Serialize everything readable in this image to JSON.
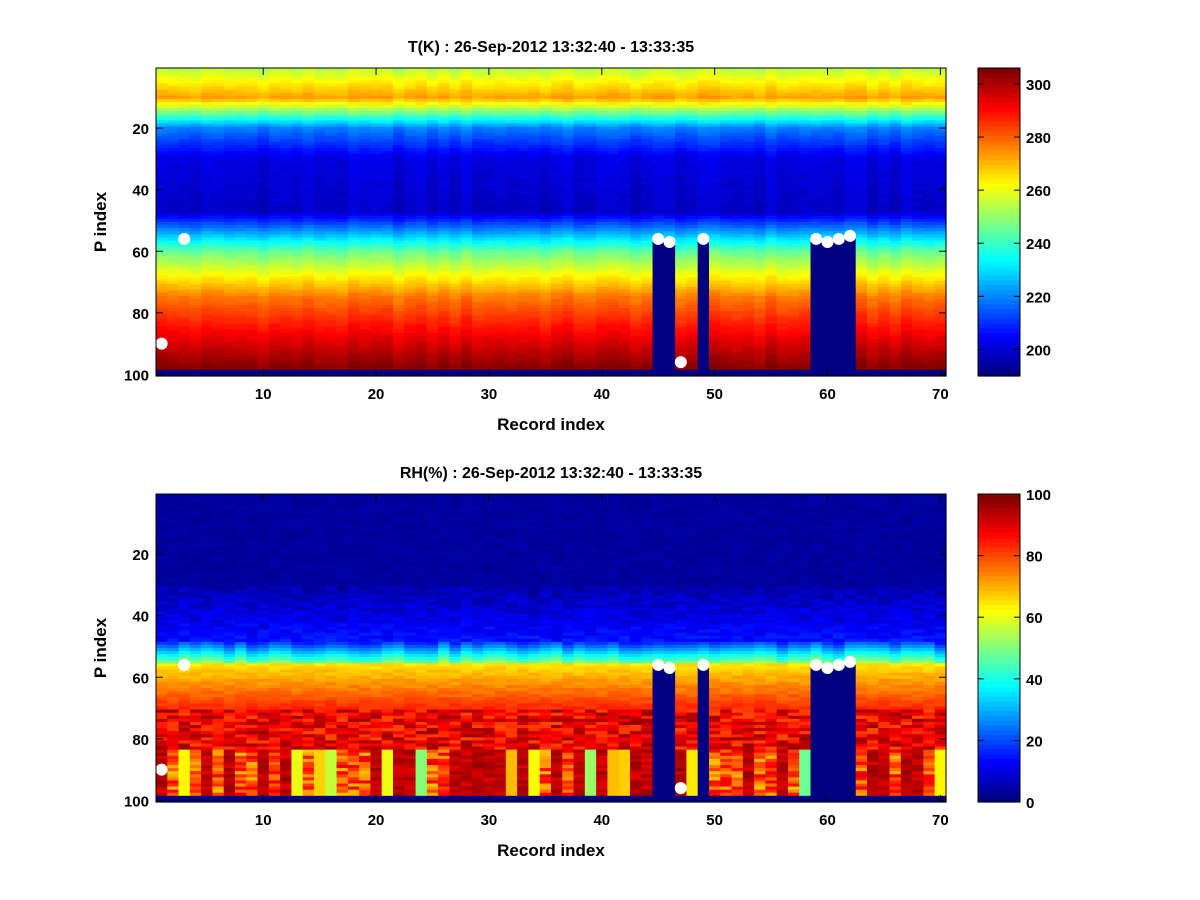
{
  "chart_data": [
    {
      "type": "heatmap",
      "title": "T(K) : 26-Sep-2012 13:32:40 - 13:33:35",
      "xlabel": "Record index",
      "ylabel": "P index",
      "xlim": [
        0.5,
        70.5
      ],
      "ylim": [
        0.5,
        100.5
      ],
      "y_reversed": true,
      "xticks": [
        10,
        20,
        30,
        40,
        50,
        60,
        70
      ],
      "yticks": [
        20,
        40,
        60,
        80,
        100
      ],
      "colorbar": {
        "min": 190,
        "max": 306,
        "ticks": [
          200,
          220,
          240,
          260,
          280,
          300
        ],
        "colormap": "jet"
      },
      "masked_records": [
        {
          "record": 45,
          "from_level": 56
        },
        {
          "record": 46,
          "from_level": 57
        },
        {
          "record": 47,
          "from_level": 100
        },
        {
          "record": 49,
          "from_level": 56
        },
        {
          "record": 59,
          "from_level": 56
        },
        {
          "record": 60,
          "from_level": 57
        },
        {
          "record": 61,
          "from_level": 56
        },
        {
          "record": 62,
          "from_level": 55
        }
      ],
      "masked_bottom_from_level": 99,
      "markers": [
        {
          "record": 1,
          "level": 90
        },
        {
          "record": 3,
          "level": 56
        },
        {
          "record": 45,
          "level": 56
        },
        {
          "record": 46,
          "level": 57
        },
        {
          "record": 47,
          "level": 96
        },
        {
          "record": 49,
          "level": 56
        },
        {
          "record": 59,
          "level": 56
        },
        {
          "record": 60,
          "level": 57
        },
        {
          "record": 61,
          "level": 56
        },
        {
          "record": 62,
          "level": 55
        }
      ]
    },
    {
      "type": "heatmap",
      "title": "RH(%) : 26-Sep-2012 13:32:40 - 13:33:35",
      "xlabel": "Record index",
      "ylabel": "P index",
      "xlim": [
        0.5,
        70.5
      ],
      "ylim": [
        0.5,
        100.5
      ],
      "y_reversed": true,
      "xticks": [
        10,
        20,
        30,
        40,
        50,
        60,
        70
      ],
      "yticks": [
        20,
        40,
        60,
        80,
        100
      ],
      "colorbar": {
        "min": 0,
        "max": 100,
        "ticks": [
          0,
          20,
          40,
          60,
          80,
          100
        ],
        "colormap": "jet"
      },
      "masked_records": [
        {
          "record": 45,
          "from_level": 56
        },
        {
          "record": 46,
          "from_level": 57
        },
        {
          "record": 47,
          "from_level": 100
        },
        {
          "record": 49,
          "from_level": 56
        },
        {
          "record": 59,
          "from_level": 56
        },
        {
          "record": 60,
          "from_level": 57
        },
        {
          "record": 61,
          "from_level": 56
        },
        {
          "record": 62,
          "from_level": 55
        }
      ],
      "masked_bottom_from_level": 99,
      "markers": [
        {
          "record": 1,
          "level": 90
        },
        {
          "record": 3,
          "level": 56
        },
        {
          "record": 45,
          "level": 56
        },
        {
          "record": 46,
          "level": 57
        },
        {
          "record": 47,
          "level": 96
        },
        {
          "record": 49,
          "level": 56
        },
        {
          "record": 59,
          "level": 56
        },
        {
          "record": 60,
          "level": 57
        },
        {
          "record": 61,
          "level": 56
        },
        {
          "record": 62,
          "level": 55
        }
      ]
    }
  ]
}
